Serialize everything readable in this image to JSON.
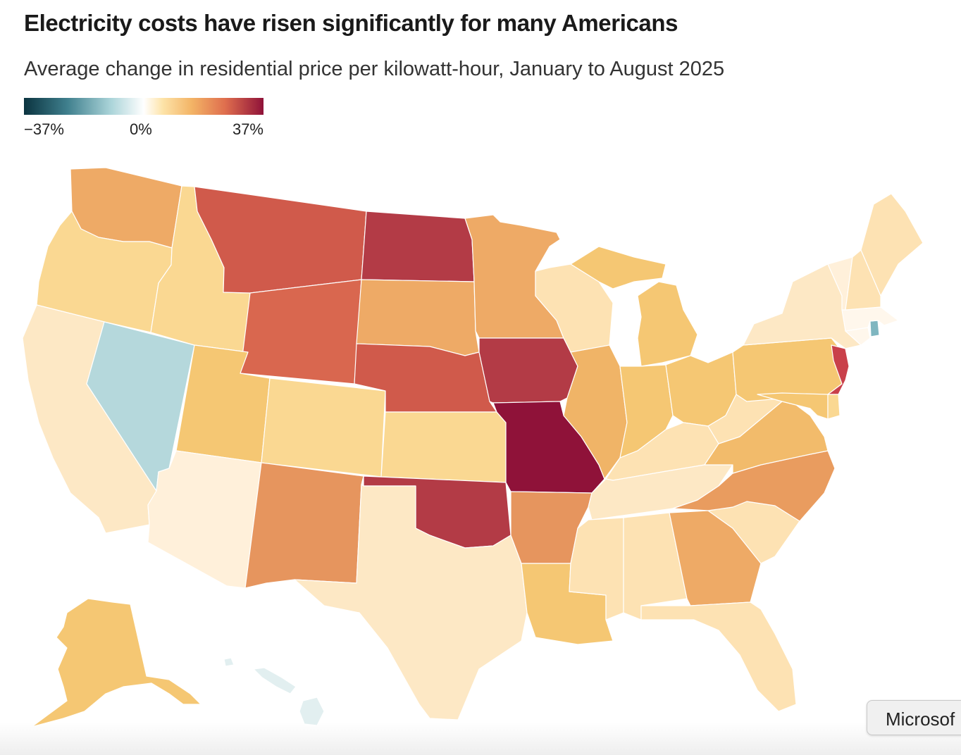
{
  "title": "Electricity costs have risen significantly for many Americans",
  "subtitle": "Average change in residential price per kilowatt-hour, January to August 2025",
  "legend": {
    "min_label": "−37%",
    "mid_label": "0%",
    "max_label": "37%"
  },
  "overlay_button": {
    "label": "Microsof"
  },
  "colors": {
    "deep_red": "#8f1239",
    "red": "#b33b46",
    "red_orange": "#d05a4b",
    "orange_red": "#d9674f",
    "orange": "#e6955e",
    "light_orange": "#eeaa66",
    "gold": "#f5c773",
    "light_gold": "#fad892",
    "pale": "#fde2b3",
    "very_pale": "#fff0da",
    "near_white": "#fff7ec",
    "blue": "#b5d8dc",
    "mid_blue": "#7fb6c0",
    "pale_blue": "#e2eff0"
  },
  "states": [
    {
      "id": "WA",
      "name": "Washington",
      "color": "#eeaa66"
    },
    {
      "id": "OR",
      "name": "Oregon",
      "color": "#fad892"
    },
    {
      "id": "CA",
      "name": "California",
      "color": "#fde8c5"
    },
    {
      "id": "NV",
      "name": "Nevada",
      "color": "#b5d8dc"
    },
    {
      "id": "ID",
      "name": "Idaho",
      "color": "#fad892"
    },
    {
      "id": "MT",
      "name": "Montana",
      "color": "#d05a4b"
    },
    {
      "id": "WY",
      "name": "Wyoming",
      "color": "#d9674f"
    },
    {
      "id": "UT",
      "name": "Utah",
      "color": "#f5c773"
    },
    {
      "id": "AZ",
      "name": "Arizona",
      "color": "#fff0da"
    },
    {
      "id": "CO",
      "name": "Colorado",
      "color": "#fad892"
    },
    {
      "id": "NM",
      "name": "New Mexico",
      "color": "#e6955e"
    },
    {
      "id": "ND",
      "name": "North Dakota",
      "color": "#b33b46"
    },
    {
      "id": "SD",
      "name": "South Dakota",
      "color": "#eeaa66"
    },
    {
      "id": "NE",
      "name": "Nebraska",
      "color": "#d05a4b"
    },
    {
      "id": "KS",
      "name": "Kansas",
      "color": "#fad892"
    },
    {
      "id": "OK",
      "name": "Oklahoma",
      "color": "#b33b46"
    },
    {
      "id": "TX",
      "name": "Texas",
      "color": "#fde8c5"
    },
    {
      "id": "MN",
      "name": "Minnesota",
      "color": "#eeaa66"
    },
    {
      "id": "IA",
      "name": "Iowa",
      "color": "#b33b46"
    },
    {
      "id": "MO",
      "name": "Missouri",
      "color": "#8f1239"
    },
    {
      "id": "AR",
      "name": "Arkansas",
      "color": "#e6955e"
    },
    {
      "id": "LA",
      "name": "Louisiana",
      "color": "#f5c773"
    },
    {
      "id": "WI",
      "name": "Wisconsin",
      "color": "#fde2b3"
    },
    {
      "id": "IL",
      "name": "Illinois",
      "color": "#f0b467"
    },
    {
      "id": "MI",
      "name": "Michigan",
      "color": "#f5c773"
    },
    {
      "id": "IN",
      "name": "Indiana",
      "color": "#f5c773"
    },
    {
      "id": "OH",
      "name": "Ohio",
      "color": "#f5c773"
    },
    {
      "id": "KY",
      "name": "Kentucky",
      "color": "#fde2b3"
    },
    {
      "id": "TN",
      "name": "Tennessee",
      "color": "#fde8c5"
    },
    {
      "id": "MS",
      "name": "Mississippi",
      "color": "#fde2b3"
    },
    {
      "id": "AL",
      "name": "Alabama",
      "color": "#fde2b3"
    },
    {
      "id": "GA",
      "name": "Georgia",
      "color": "#eeaa66"
    },
    {
      "id": "FL",
      "name": "Florida",
      "color": "#fde2b3"
    },
    {
      "id": "SC",
      "name": "South Carolina",
      "color": "#fde2b3"
    },
    {
      "id": "NC",
      "name": "North Carolina",
      "color": "#e99c5f"
    },
    {
      "id": "VA",
      "name": "Virginia",
      "color": "#f2bb6b"
    },
    {
      "id": "WV",
      "name": "West Virginia",
      "color": "#fde2b3"
    },
    {
      "id": "PA",
      "name": "Pennsylvania",
      "color": "#f5c773"
    },
    {
      "id": "NY",
      "name": "New York",
      "color": "#fde8c5"
    },
    {
      "id": "NJ",
      "name": "New Jersey",
      "color": "#c9404a"
    },
    {
      "id": "MD",
      "name": "Maryland",
      "color": "#f5c773"
    },
    {
      "id": "DE",
      "name": "Delaware",
      "color": "#fad892"
    },
    {
      "id": "CT",
      "name": "Connecticut",
      "color": "#fff7ec"
    },
    {
      "id": "RI",
      "name": "Rhode Island",
      "color": "#7fb6c0"
    },
    {
      "id": "MA",
      "name": "Massachusetts",
      "color": "#fff7ec"
    },
    {
      "id": "VT",
      "name": "Vermont",
      "color": "#fff0da"
    },
    {
      "id": "NH",
      "name": "New Hampshire",
      "color": "#fde2b3"
    },
    {
      "id": "ME",
      "name": "Maine",
      "color": "#fde2b3"
    },
    {
      "id": "AK",
      "name": "Alaska",
      "color": "#f5c773"
    },
    {
      "id": "HI",
      "name": "Hawaii",
      "color": "#e2eff0"
    }
  ]
}
